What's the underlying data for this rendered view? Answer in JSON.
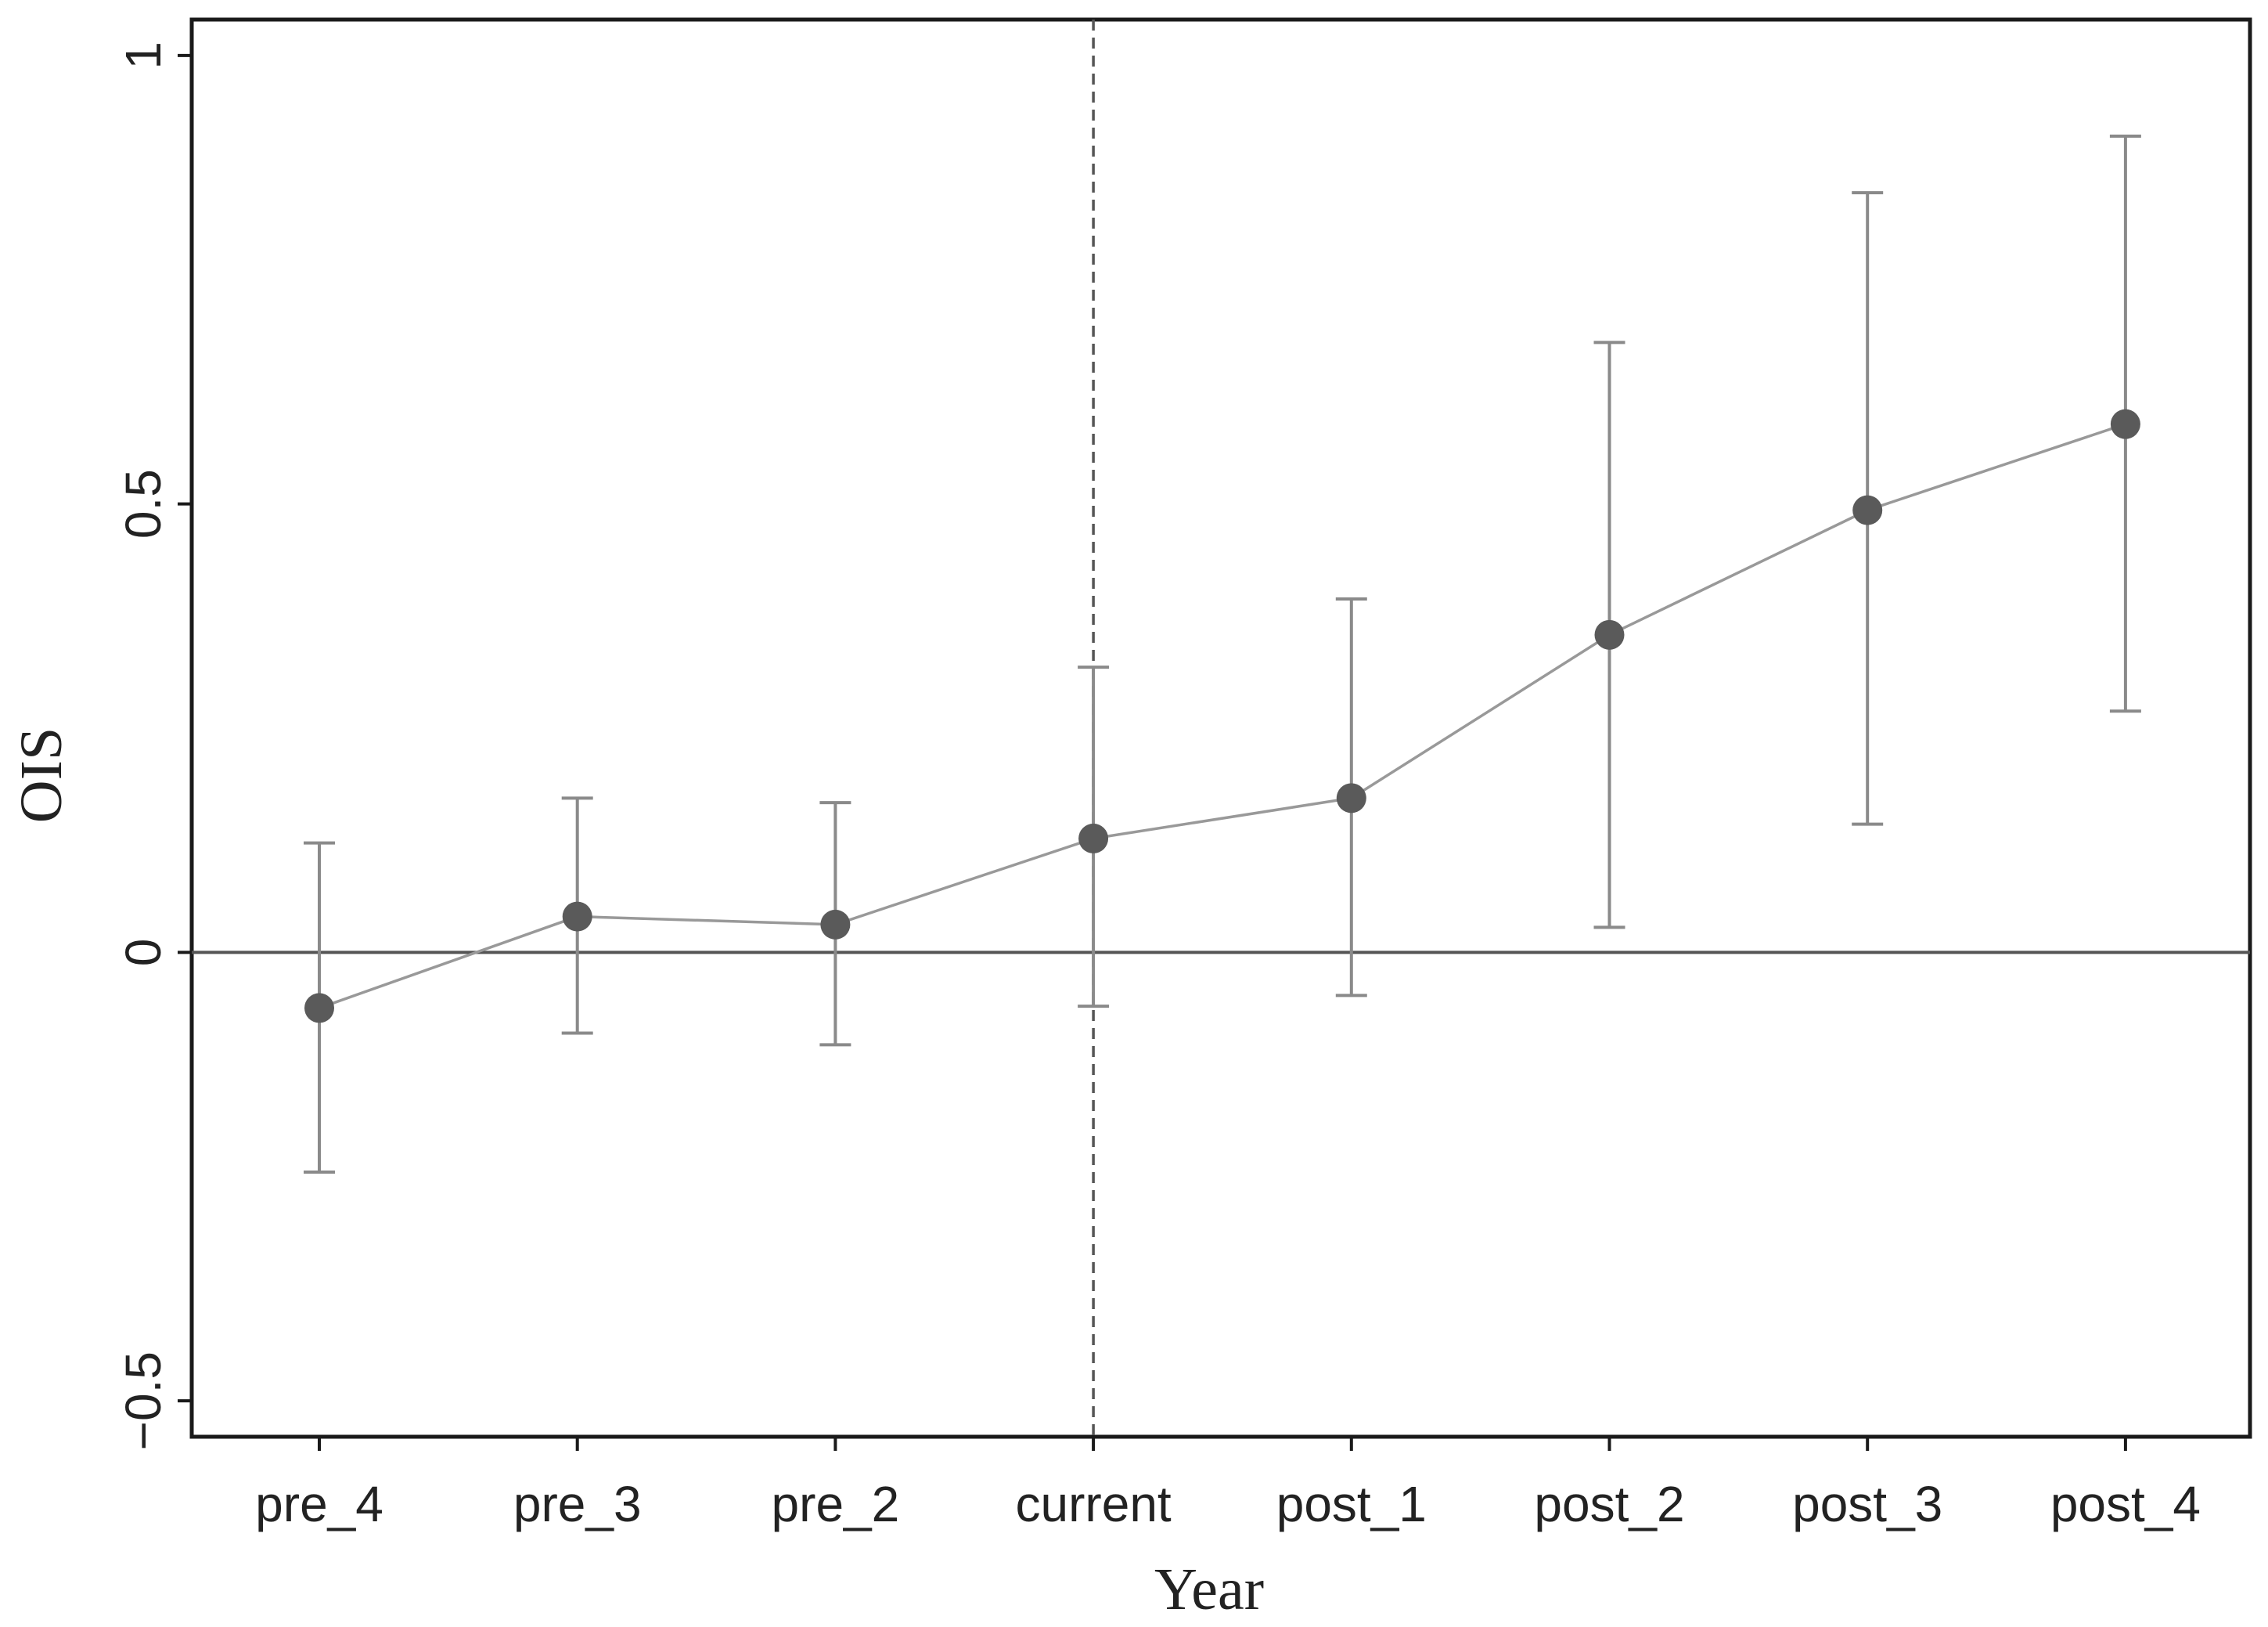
{
  "chart_data": {
    "type": "scatter",
    "style": "point estimates with confidence intervals, connected by line",
    "xlabel": "Year",
    "ylabel": "OIS",
    "categories": [
      "pre_4",
      "pre_3",
      "pre_2",
      "current",
      "post_1",
      "post_2",
      "post_3",
      "post_4"
    ],
    "series": [
      {
        "values": [
          -0.062,
          0.04,
          0.031,
          0.127,
          0.172,
          0.354,
          0.493,
          0.589
        ],
        "ci_lower": [
          -0.245,
          -0.09,
          -0.103,
          -0.06,
          -0.048,
          0.028,
          0.143,
          0.269
        ],
        "ci_upper": [
          0.122,
          0.172,
          0.167,
          0.318,
          0.394,
          0.68,
          0.847,
          0.91
        ]
      }
    ],
    "yticks": [
      -0.5,
      0,
      0.5,
      1
    ],
    "ytick_labels": [
      "−0.5",
      "0",
      "0.5",
      "1"
    ],
    "ylim": [
      -0.54,
      1.04
    ],
    "reference_lines": {
      "horizontal_at_y": 0,
      "vertical_dashed_at_category": "current"
    },
    "grid": false,
    "legend": "none",
    "colors": {
      "points": "#5a5a5a",
      "ci": "#8a8a8a",
      "line": "#999999",
      "frame": "#1a1a1a"
    }
  }
}
